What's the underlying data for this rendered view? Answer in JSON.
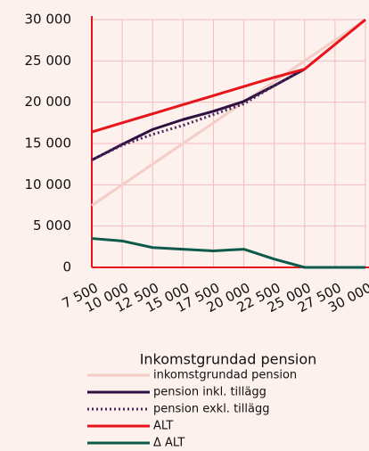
{
  "chart_data": {
    "type": "line",
    "legend_title": "Inkomstgrundad pension",
    "x": [
      7500,
      10000,
      12500,
      15000,
      17500,
      20000,
      22500,
      25000,
      27500,
      30000
    ],
    "xlim": [
      7500,
      30000
    ],
    "xticks": [
      {
        "value": 7500,
        "label": "7 500"
      },
      {
        "value": 10000,
        "label": "10 000"
      },
      {
        "value": 12500,
        "label": "12 500"
      },
      {
        "value": 15000,
        "label": "15 000"
      },
      {
        "value": 17500,
        "label": "17 500"
      },
      {
        "value": 20000,
        "label": "20 000"
      },
      {
        "value": 22500,
        "label": "22 500"
      },
      {
        "value": 25000,
        "label": "25 000"
      },
      {
        "value": 27500,
        "label": "27 500"
      },
      {
        "value": 30000,
        "label": "30 000"
      }
    ],
    "ylim": [
      0,
      30000
    ],
    "yticks": [
      0,
      {
        "value": 5000,
        "label": "5 000"
      },
      {
        "value": 10000,
        "label": "10 000"
      },
      {
        "value": 15000,
        "label": "15 000"
      },
      {
        "value": 20000,
        "label": "20 000"
      },
      {
        "value": 25000,
        "label": "25 000"
      },
      {
        "value": 30000,
        "label": "30 000"
      }
    ],
    "grid": true,
    "series": [
      {
        "name": "inkomstgrundad pension",
        "color": "#f4cdc6",
        "style": "solid",
        "values": [
          7500,
          10000,
          12500,
          15000,
          17500,
          20000,
          22500,
          25000,
          27500,
          30000
        ]
      },
      {
        "name": "pension inkl. tillägg",
        "color": "#2d1040",
        "style": "solid",
        "values": [
          13000,
          14900,
          16700,
          17900,
          18900,
          20100,
          22000,
          24000,
          null,
          null
        ]
      },
      {
        "name": "pension exkl. tillägg",
        "color": "#4a2a5e",
        "style": "dotted",
        "values": [
          13000,
          14800,
          16100,
          17200,
          18500,
          19800,
          22000,
          24000,
          null,
          null
        ]
      },
      {
        "name": "ALT",
        "color": "#e8141c",
        "style": "solid",
        "values": [
          16400,
          17500,
          18600,
          19700,
          20800,
          21900,
          23000,
          24000,
          27000,
          30000
        ]
      },
      {
        "name": "Δ ALT",
        "color": "#0d5a4a",
        "style": "solid",
        "values": [
          3500,
          3200,
          2400,
          2200,
          2000,
          2200,
          1000,
          0,
          0,
          0
        ]
      }
    ]
  }
}
